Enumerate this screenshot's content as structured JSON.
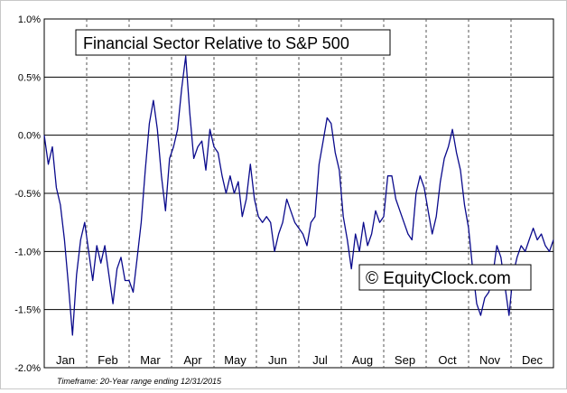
{
  "chart_data": {
    "type": "line",
    "title": "Financial Sector Relative to S&P 500",
    "watermark": "© EquityClock.com",
    "footnote": "Timeframe: 20-Year range ending 12/31/2015",
    "xlabel": "",
    "ylabel": "",
    "ylim": [
      -2.0,
      1.0
    ],
    "y_ticks": [
      "1.0%",
      "0.5%",
      "0.0%",
      "-0.5%",
      "-1.0%",
      "-1.5%",
      "-2.0%"
    ],
    "y_tick_values": [
      1.0,
      0.5,
      0.0,
      -0.5,
      -1.0,
      -1.5,
      -2.0
    ],
    "x_unit": "trading day of year",
    "xlim": [
      0,
      252
    ],
    "categories": [
      "Jan",
      "Feb",
      "Mar",
      "Apr",
      "May",
      "Jun",
      "Jul",
      "Aug",
      "Sep",
      "Oct",
      "Nov",
      "Dec"
    ],
    "line_color": "#0a0a8c",
    "grid": true,
    "series": [
      {
        "x": [
          0,
          2,
          4,
          6,
          8,
          10,
          12,
          14,
          16,
          18,
          20,
          22,
          24,
          26,
          28,
          30,
          32,
          34,
          36,
          38,
          40,
          42,
          44,
          46,
          48,
          50,
          52,
          54,
          56,
          58,
          60,
          62,
          64,
          66,
          68,
          70,
          72,
          74,
          76,
          78,
          80,
          82,
          84,
          86,
          88,
          90,
          92,
          94,
          96,
          98,
          100,
          102,
          104,
          106,
          108,
          110,
          112,
          114,
          116,
          118,
          120,
          122,
          124,
          126,
          128,
          130,
          132,
          134,
          136,
          138,
          140,
          142,
          144,
          146,
          148,
          150,
          152,
          154,
          156,
          158,
          160,
          162,
          164,
          166,
          168,
          170,
          172,
          174,
          176,
          178,
          180,
          182,
          184,
          186,
          188,
          190,
          192,
          194,
          196,
          198,
          200,
          202,
          204,
          206,
          208,
          210,
          212,
          214,
          216,
          218,
          220,
          222,
          224,
          226,
          228,
          230,
          232,
          234,
          236,
          238,
          240,
          242,
          244,
          246,
          248,
          250,
          252
        ],
        "values": [
          0.0,
          -0.25,
          -0.1,
          -0.45,
          -0.6,
          -0.9,
          -1.3,
          -1.72,
          -1.2,
          -0.9,
          -0.75,
          -1.0,
          -1.25,
          -0.95,
          -1.1,
          -0.95,
          -1.2,
          -1.45,
          -1.15,
          -1.05,
          -1.25,
          -1.25,
          -1.35,
          -1.05,
          -0.75,
          -0.3,
          0.1,
          0.3,
          0.05,
          -0.35,
          -0.65,
          -0.2,
          -0.1,
          0.05,
          0.4,
          0.68,
          0.2,
          -0.2,
          -0.1,
          -0.05,
          -0.3,
          0.05,
          -0.1,
          -0.15,
          -0.35,
          -0.5,
          -0.35,
          -0.5,
          -0.4,
          -0.7,
          -0.55,
          -0.25,
          -0.55,
          -0.7,
          -0.75,
          -0.7,
          -0.75,
          -1.0,
          -0.85,
          -0.75,
          -0.55,
          -0.65,
          -0.75,
          -0.8,
          -0.85,
          -0.95,
          -0.75,
          -0.7,
          -0.25,
          -0.05,
          0.15,
          0.1,
          -0.15,
          -0.3,
          -0.7,
          -0.9,
          -1.15,
          -0.85,
          -1.0,
          -0.75,
          -0.95,
          -0.85,
          -0.65,
          -0.75,
          -0.7,
          -0.35,
          -0.35,
          -0.55,
          -0.65,
          -0.75,
          -0.85,
          -0.9,
          -0.5,
          -0.35,
          -0.45,
          -0.65,
          -0.85,
          -0.7,
          -0.4,
          -0.2,
          -0.1,
          0.05,
          -0.15,
          -0.3,
          -0.6,
          -0.8,
          -1.15,
          -1.45,
          -1.55,
          -1.4,
          -1.35,
          -1.2,
          -0.95,
          -1.05,
          -1.3,
          -1.55,
          -1.2,
          -1.05,
          -0.95,
          -1.0,
          -0.9,
          -0.8,
          -0.9,
          -0.85,
          -0.95,
          -1.0,
          -0.9
        ]
      }
    ]
  }
}
